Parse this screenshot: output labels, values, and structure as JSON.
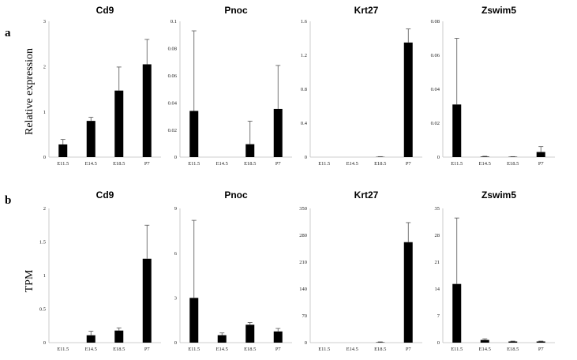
{
  "rows": [
    {
      "letter": "a",
      "ylabel": "Relative expression"
    },
    {
      "letter": "b",
      "ylabel": "TPM"
    }
  ],
  "chart_data": [
    {
      "type": "bar",
      "row": 0,
      "col": 0,
      "title": "Cd9",
      "categories": [
        "E11.5",
        "E14.5",
        "E18.5",
        "P7"
      ],
      "values": [
        0.28,
        0.8,
        1.47,
        2.05
      ],
      "errors": [
        0.11,
        0.08,
        0.52,
        0.55
      ],
      "ylim": [
        0,
        3
      ],
      "yticks": [
        "0",
        "1",
        "2",
        "3"
      ]
    },
    {
      "type": "bar",
      "row": 0,
      "col": 1,
      "title": "Pnoc",
      "categories": [
        "E11.5",
        "E14.5",
        "E18.5",
        "P7"
      ],
      "values": [
        0.034,
        0.0,
        0.0095,
        0.0355
      ],
      "errors": [
        0.059,
        0.0,
        0.017,
        0.032
      ],
      "ylim": [
        0,
        0.1
      ],
      "yticks": [
        "0",
        "0.02",
        "0.04",
        "0.06",
        "0.08",
        "0.1"
      ]
    },
    {
      "type": "bar",
      "row": 0,
      "col": 2,
      "title": "Krt27",
      "categories": [
        "E11.5",
        "E14.5",
        "E18.5",
        "P7"
      ],
      "values": [
        0.0,
        0.0,
        0.003,
        1.35
      ],
      "errors": [
        0.0,
        0.0,
        0.003,
        0.16
      ],
      "ylim": [
        0,
        1.6
      ],
      "yticks": [
        "0",
        "0.4",
        "0.8",
        "1.2",
        "1.6"
      ]
    },
    {
      "type": "bar",
      "row": 0,
      "col": 3,
      "title": "Zswim5",
      "categories": [
        "E11.5",
        "E14.5",
        "E18.5",
        "P7"
      ],
      "values": [
        0.031,
        0.0003,
        0.0002,
        0.003
      ],
      "errors": [
        0.039,
        0.0002,
        0.0001,
        0.0032
      ],
      "ylim": [
        0,
        0.08
      ],
      "yticks": [
        "0",
        "0.02",
        "0.04",
        "0.06",
        "0.08"
      ]
    },
    {
      "type": "bar",
      "row": 1,
      "col": 0,
      "title": "Cd9",
      "categories": [
        "E11.5",
        "E14.5",
        "E18.5",
        "P7"
      ],
      "values": [
        0.0,
        0.11,
        0.18,
        1.25
      ],
      "errors": [
        0.0,
        0.06,
        0.04,
        0.5
      ],
      "ylim": [
        0,
        2
      ],
      "yticks": [
        "0",
        "0.5",
        "1",
        "1.5",
        "2"
      ]
    },
    {
      "type": "bar",
      "row": 1,
      "col": 1,
      "title": "Pnoc",
      "categories": [
        "E11.5",
        "E14.5",
        "E18.5",
        "P7"
      ],
      "values": [
        3.0,
        0.5,
        1.2,
        0.75
      ],
      "errors": [
        5.2,
        0.15,
        0.15,
        0.2
      ],
      "ylim": [
        0,
        9
      ],
      "yticks": [
        "0",
        "3",
        "6",
        "9"
      ]
    },
    {
      "type": "bar",
      "row": 1,
      "col": 2,
      "title": "Krt27",
      "categories": [
        "E11.5",
        "E14.5",
        "E18.5",
        "P7"
      ],
      "values": [
        0.0,
        0.0,
        1.0,
        262
      ],
      "errors": [
        0.0,
        0.0,
        1.0,
        51
      ],
      "ylim": [
        0,
        350
      ],
      "yticks": [
        "0",
        "70",
        "140",
        "210",
        "280",
        "350"
      ]
    },
    {
      "type": "bar",
      "row": 1,
      "col": 3,
      "title": "Zswim5",
      "categories": [
        "E11.5",
        "E14.5",
        "E18.5",
        "P7"
      ],
      "values": [
        15.3,
        0.7,
        0.3,
        0.3
      ],
      "errors": [
        17.2,
        0.3,
        0.1,
        0.1
      ],
      "ylim": [
        0,
        35
      ],
      "yticks": [
        "0",
        "7",
        "14",
        "21",
        "28",
        "35"
      ]
    }
  ]
}
